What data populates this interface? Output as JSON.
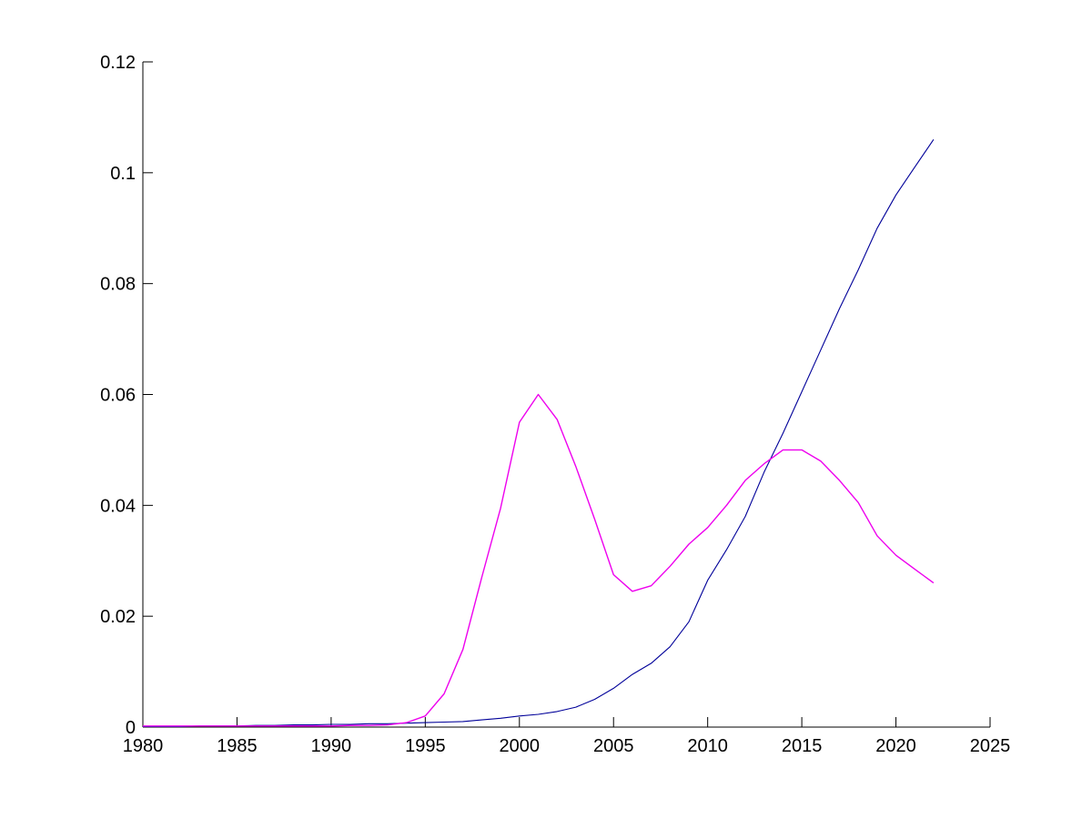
{
  "figure": {
    "background": "#ffffff",
    "title": ""
  },
  "chart_data": {
    "type": "line",
    "title": "",
    "xlabel": "",
    "ylabel": "",
    "grid": false,
    "legend": null,
    "xlim": [
      1980,
      2025
    ],
    "ylim": [
      0,
      0.12
    ],
    "xticks": [
      1980,
      1985,
      1990,
      1995,
      2000,
      2005,
      2010,
      2015,
      2020,
      2025
    ],
    "xtick_labels": [
      "1980",
      "1985",
      "1990",
      "1995",
      "2000",
      "2005",
      "2010",
      "2015",
      "2020",
      "2025"
    ],
    "yticks": [
      0,
      0.02,
      0.04,
      0.06,
      0.08,
      0.1,
      0.12
    ],
    "ytick_labels": [
      "0",
      "0.02",
      "0.04",
      "0.06",
      "0.08",
      "0.1",
      "0.12"
    ],
    "axis_color": "#000000",
    "x": [
      1980,
      1981,
      1982,
      1983,
      1984,
      1985,
      1986,
      1987,
      1988,
      1989,
      1990,
      1991,
      1992,
      1993,
      1994,
      1995,
      1996,
      1997,
      1998,
      1999,
      2000,
      2001,
      2002,
      2003,
      2004,
      2005,
      2006,
      2007,
      2008,
      2009,
      2010,
      2011,
      2012,
      2013,
      2014,
      2015,
      2016,
      2017,
      2018,
      2019,
      2020,
      2021,
      2022
    ],
    "series": [
      {
        "name": "blue-series",
        "color": "#000099",
        "stroke_width": 1.1,
        "values": [
          0.0001,
          0.0001,
          0.0001,
          0.0002,
          0.0002,
          0.0002,
          0.0003,
          0.0003,
          0.0004,
          0.0004,
          0.0005,
          0.0005,
          0.0006,
          0.0006,
          0.0007,
          0.0008,
          0.0009,
          0.001,
          0.0013,
          0.0016,
          0.002,
          0.0023,
          0.0028,
          0.0036,
          0.005,
          0.007,
          0.0095,
          0.0115,
          0.0145,
          0.019,
          0.0265,
          0.032,
          0.038,
          0.046,
          0.053,
          0.0605,
          0.068,
          0.0755,
          0.0825,
          0.09,
          0.096,
          0.101,
          0.106
        ]
      },
      {
        "name": "magenta-series",
        "color": "#EE00EE",
        "stroke_width": 1.4,
        "values": [
          0.0002,
          0.0002,
          0.0002,
          0.0002,
          0.0002,
          0.0002,
          0.0002,
          0.0002,
          0.0002,
          0.0002,
          0.0002,
          0.0003,
          0.0003,
          0.0004,
          0.0008,
          0.002,
          0.006,
          0.014,
          0.027,
          0.0395,
          0.055,
          0.06,
          0.0555,
          0.047,
          0.0375,
          0.0275,
          0.0245,
          0.0255,
          0.029,
          0.033,
          0.036,
          0.04,
          0.0445,
          0.0475,
          0.05,
          0.05,
          0.048,
          0.0445,
          0.0405,
          0.0345,
          0.031,
          0.0285,
          0.026
        ]
      }
    ]
  }
}
